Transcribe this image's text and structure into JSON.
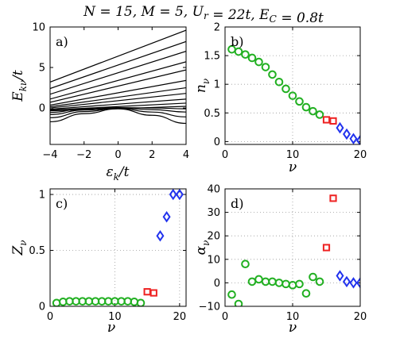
{
  "figure_title": "N = 15, M = 5, U_r = 22t, E_C = 0.8t",
  "colors": {
    "green": "#22b022",
    "red": "#ee2222",
    "blue": "#2233ee",
    "axis": "#000000",
    "grid": "#999999"
  },
  "chart_data": [
    {
      "panel": "a)",
      "type": "line",
      "xlabel": "ε_k/t",
      "ylabel": "E_kν/t",
      "xlim": [
        -4,
        4
      ],
      "ylim": [
        -4.5,
        10
      ],
      "xticks": [
        -4,
        -2,
        0,
        2,
        4
      ],
      "yticks": [
        0,
        5,
        10
      ],
      "grid": false,
      "series": [
        {
          "x": [
            -4,
            4
          ],
          "y": [
            3.2,
            9.6
          ]
        },
        {
          "x": [
            -4,
            4
          ],
          "y": [
            2.4,
            8.2
          ]
        },
        {
          "x": [
            -4,
            4
          ],
          "y": [
            1.7,
            7.0
          ]
        },
        {
          "x": [
            -4,
            4
          ],
          "y": [
            1.1,
            5.7
          ]
        },
        {
          "x": [
            -4,
            4
          ],
          "y": [
            0.7,
            4.7
          ]
        },
        {
          "x": [
            -4,
            4
          ],
          "y": [
            0.35,
            3.4
          ]
        },
        {
          "x": [
            -4,
            4
          ],
          "y": [
            0.15,
            2.5
          ]
        },
        {
          "x": [
            -4,
            4
          ],
          "y": [
            0.0,
            1.8
          ]
        },
        {
          "x": [
            -4,
            4
          ],
          "y": [
            -0.15,
            1.1
          ]
        },
        {
          "x": [
            -4,
            4
          ],
          "y": [
            -0.25,
            0.6
          ]
        },
        {
          "x": [
            -4,
            4
          ],
          "y": [
            -0.35,
            0.2
          ]
        },
        {
          "x": [
            -4,
            -2,
            0,
            2,
            4
          ],
          "y": [
            -0.55,
            -0.1,
            0.05,
            0.0,
            -0.1
          ]
        },
        {
          "x": [
            -4,
            -2,
            0,
            2,
            4
          ],
          "y": [
            -0.8,
            -0.25,
            0.0,
            -0.2,
            -0.5
          ]
        },
        {
          "x": [
            -4,
            -2,
            0,
            2,
            4
          ],
          "y": [
            -1.2,
            -0.45,
            -0.05,
            -0.5,
            -1.1
          ]
        },
        {
          "x": [
            -4,
            -2,
            0,
            2,
            4
          ],
          "y": [
            -1.7,
            -0.7,
            -0.1,
            -0.9,
            -1.9
          ]
        }
      ]
    },
    {
      "panel": "b)",
      "type": "scatter",
      "xlabel": "ν",
      "ylabel": "n_ν",
      "xlim": [
        0,
        20
      ],
      "ylim": [
        -0.05,
        2
      ],
      "xticks": [
        0,
        10,
        20
      ],
      "yticks": [
        0,
        0.5,
        1,
        1.5,
        2
      ],
      "grid": true,
      "series": [
        {
          "marker": "circle",
          "color": "green",
          "x": [
            1,
            2,
            3,
            4,
            5,
            6,
            7,
            8,
            9,
            10,
            11,
            12,
            13,
            14
          ],
          "y": [
            1.61,
            1.57,
            1.52,
            1.46,
            1.39,
            1.3,
            1.17,
            1.04,
            0.92,
            0.8,
            0.7,
            0.6,
            0.53,
            0.47
          ]
        },
        {
          "marker": "square",
          "color": "red",
          "x": [
            15,
            16
          ],
          "y": [
            0.38,
            0.36
          ]
        },
        {
          "marker": "diamond",
          "color": "blue",
          "x": [
            17,
            18,
            19,
            20
          ],
          "y": [
            0.24,
            0.13,
            0.05,
            0.02
          ]
        }
      ]
    },
    {
      "panel": "c)",
      "type": "scatter",
      "xlabel": "ν",
      "ylabel": "Z_ν",
      "xlim": [
        0,
        21
      ],
      "ylim": [
        0,
        1.05
      ],
      "xticks": [
        0,
        10,
        20
      ],
      "yticks": [
        0,
        0.5,
        1
      ],
      "grid": true,
      "series": [
        {
          "marker": "circle",
          "color": "green",
          "x": [
            1,
            2,
            3,
            4,
            5,
            6,
            7,
            8,
            9,
            10,
            11,
            12,
            13,
            14
          ],
          "y": [
            0.03,
            0.04,
            0.045,
            0.045,
            0.045,
            0.045,
            0.045,
            0.045,
            0.045,
            0.045,
            0.045,
            0.045,
            0.04,
            0.03
          ]
        },
        {
          "marker": "square",
          "color": "red",
          "x": [
            15,
            16
          ],
          "y": [
            0.13,
            0.12
          ]
        },
        {
          "marker": "diamond",
          "color": "blue",
          "x": [
            17,
            18,
            19,
            20
          ],
          "y": [
            0.63,
            0.8,
            1.0,
            1.0
          ]
        }
      ]
    },
    {
      "panel": "d)",
      "type": "scatter",
      "xlabel": "ν",
      "ylabel": "α_ν",
      "xlim": [
        0,
        20
      ],
      "ylim": [
        -10,
        40
      ],
      "xticks": [
        0,
        10,
        20
      ],
      "yticks": [
        -10,
        0,
        10,
        20,
        30,
        40
      ],
      "grid": true,
      "series": [
        {
          "marker": "circle",
          "color": "green",
          "x": [
            1,
            2,
            3,
            4,
            5,
            6,
            7,
            8,
            9,
            10,
            11,
            12,
            13,
            14
          ],
          "y": [
            -5,
            -9,
            8,
            0.5,
            1.5,
            0.5,
            0.5,
            0,
            -0.5,
            -1,
            -0.5,
            -4.5,
            2.5,
            0.5
          ]
        },
        {
          "marker": "square",
          "color": "red",
          "x": [
            15,
            16
          ],
          "y": [
            15,
            36
          ]
        },
        {
          "marker": "diamond",
          "color": "blue",
          "x": [
            17,
            18,
            19,
            20
          ],
          "y": [
            3,
            0.5,
            0,
            0
          ]
        }
      ]
    }
  ]
}
